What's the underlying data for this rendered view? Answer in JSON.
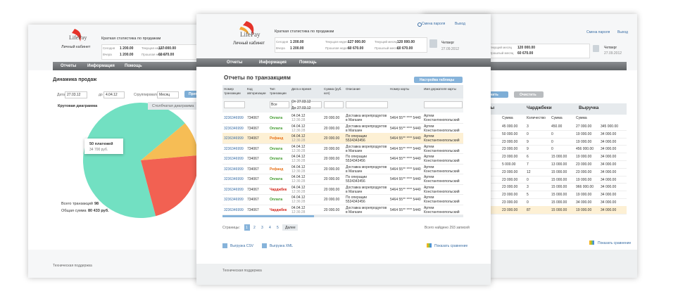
{
  "left_window": {
    "logo": "LifePay",
    "cabinet": "Личный кабинет",
    "header_title": "Краткая статистика по продажам",
    "stats": [
      {
        "label": "Сегодня",
        "value": "1 200.00"
      },
      {
        "label": "Текущая неделя",
        "value": "127 000.00"
      },
      {
        "label": "Вчера",
        "value": "1 200.00"
      },
      {
        "label": "Прошлая неделя",
        "value": "60 670.00"
      }
    ],
    "nav": [
      "Отчеты",
      "Информация",
      "Помощь"
    ],
    "title": "Динамика продаж",
    "filter": {
      "date_from_label": "Дата от",
      "date_from": "27.03.12",
      "date_to_label": "до",
      "date_to": "4.04.12",
      "group_label": "Сгруппировать по",
      "group": "Месяц",
      "apply": "Применить"
    },
    "tabs": [
      "Круговая диаграмма",
      "Столбчатая диаграмма"
    ],
    "tooltip": {
      "count": "50 платежей",
      "sum": "34 700 руб."
    },
    "totals": [
      {
        "label": "Всего транзакций",
        "value": "98"
      },
      {
        "label": "Общая сумма",
        "value": "80 433 руб."
      }
    ],
    "footer": "Техническая поддержка"
  },
  "right_window": {
    "links": [
      "Смена пароля",
      "Выход"
    ],
    "stats": [
      {
        "label": "Текущий месяц",
        "value": "120 000.00"
      },
      {
        "label": "Прошлый месяц",
        "value": "60 670.00"
      }
    ],
    "weekday": "Четверг",
    "date": "27.09.2012",
    "buttons": [
      "Применить",
      "Очистить"
    ],
    "groups": [
      "Возвраты",
      "Чарджбеки",
      "Выручка"
    ],
    "subheaders": [
      "Сумма",
      "Количество",
      "Сумма",
      "Сумма"
    ],
    "rows": [
      [
        "45 000.00",
        "3",
        "450.00",
        "27 000.00",
        "345 000.00"
      ],
      [
        "50 000.00",
        "0",
        "0",
        "19 000.00",
        "34 000.00"
      ],
      [
        "23 000.00",
        "9",
        "0",
        "19 000.00",
        "34 000.00"
      ],
      [
        "23 000.00",
        "9",
        "0",
        "456 000.00",
        "34 000.00"
      ],
      [
        "23 000.00",
        "6",
        "15 000.00",
        "19 000.00",
        "34 000.00"
      ],
      [
        "5 000.00",
        "7",
        "13 000.00",
        "23 000.00",
        "34 000.00"
      ],
      [
        "23 000.00",
        "12",
        "15 000.00",
        "23 000.00",
        "34 000.00"
      ],
      [
        "23 000.00",
        "0",
        "15 000.00",
        "19 000.00",
        "34 000.00"
      ],
      [
        "23 000.00",
        "3",
        "15 000.00",
        "966 000.00",
        "34 000.00"
      ],
      [
        "23 000.00",
        "5",
        "15 000.00",
        "19 000.00",
        "34 000.00"
      ],
      [
        "23 000.00",
        "0",
        "15 000.00",
        "34 000.00",
        "34 000.00"
      ],
      [
        "23 000.00",
        "87",
        "15 000.00",
        "19 000.00",
        "34 000.00"
      ]
    ],
    "compare": "Показать сравнение"
  },
  "center_window": {
    "logo": "LifePay",
    "cabinet": "Личный кабинет",
    "header_title": "Краткая статистика по продажам",
    "stats": [
      {
        "label": "Сегодня",
        "value": "1 200.00"
      },
      {
        "label": "Текущая неделя",
        "value": "127 000.00"
      },
      {
        "label": "Текущий месяц",
        "value": "120 000.00"
      },
      {
        "label": "Вчера",
        "value": "1 200.00"
      },
      {
        "label": "Прошлая неделя",
        "value": "60 670.00"
      },
      {
        "label": "Прошлый месяц",
        "value": "60 670.00"
      }
    ],
    "links": [
      "Смена пароля",
      "Выход"
    ],
    "weekday": "Четверг",
    "date": "27.09.2012",
    "nav": [
      "Отчеты",
      "Информация",
      "Помощь"
    ],
    "title": "Отчеты по транзакциям",
    "settings_button": "Настройка таблицы",
    "table": {
      "columns": [
        "Номер транзакции",
        "Код авторизации",
        "Тип транзакции",
        "Дата и время",
        "Сумма (руб. коп)",
        "Описание",
        "Номер карты",
        "Имя держателя карты"
      ],
      "filter": {
        "type": "Все",
        "from_label": "От",
        "from": "27.03.12",
        "to_label": "До",
        "to": "27.03.12"
      },
      "type_colors": {
        "Оплата": "#3f9a2c",
        "Рефанд": "#e8731b",
        "Чарджбек": "#d4261b"
      },
      "highlight_row": 2,
      "rows": [
        [
          "3236346999",
          "734067",
          "Оплата",
          "04.04.12",
          "12:36:28",
          "20 000.00",
          "Доставка морепродуктов в Магазин",
          "5464 55** **** 5440",
          "Артем Константинопольский"
        ],
        [
          "3236346999",
          "734067",
          "Оплата",
          "04.04.12",
          "12:36:28",
          "20 000.00",
          "Доставка морепродуктов в Магазин",
          "5464 55** **** 5440",
          "Артем Константинопольский"
        ],
        [
          "3236346999",
          "734067",
          "Рефанд",
          "04.04.12",
          "12:36:28",
          "20 000.00",
          "По операции 5534343456",
          "5464 55** **** 5440",
          "Артем Константинопольский"
        ],
        [
          "3236346999",
          "734067",
          "Оплата",
          "04.04.12",
          "12:36:28",
          "20 000.00",
          "Доставка морепродуктов в Магазин",
          "5464 55** **** 5440",
          "Артем Константинопольский"
        ],
        [
          "3236346999",
          "734067",
          "Оплата",
          "04.04.12",
          "12:36:28",
          "20 000.00",
          "По операции 5534343456",
          "5464 55** **** 5440",
          "Артем Константинопольский"
        ],
        [
          "3236346999",
          "734067",
          "Рефанд",
          "04.04.12",
          "12:36:28",
          "20 000.00",
          "Доставка морепродуктов в Магазин",
          "5464 55** **** 5440",
          "Артем Константинопольский"
        ],
        [
          "3236346999",
          "734067",
          "Оплата",
          "04.04.12",
          "12:36:28",
          "20 000.00",
          "По операции 5534343456",
          "5464 55** **** 5440",
          "Артем Константинопольский"
        ],
        [
          "3236346999",
          "734067",
          "Чарджбек",
          "04.04.12",
          "12:36:28",
          "20 000.00",
          "Доставка морепродуктов в Магазин",
          "5464 55** **** 5440",
          "Артем Константинопольский"
        ],
        [
          "3236346999",
          "734067",
          "Оплата",
          "04.04.12",
          "12:36:28",
          "20 000.00",
          "По операции 5534343456",
          "5464 55** **** 5440",
          "Артем Константинопольский"
        ],
        [
          "3236346999",
          "734067",
          "Чарджбек",
          "04.04.12",
          "12:36:28",
          "20 000.00",
          "Доставка морепродуктов в Магазин",
          "5464 55** **** 5440",
          "Артем Константинопольский"
        ]
      ]
    },
    "pages_label": "Страницы:",
    "pages": [
      "1",
      "2",
      "3",
      "4",
      "5"
    ],
    "next": "Далее",
    "found": "Всего найдено 293 записей",
    "exports": [
      "Выгрузка CSV",
      "Выгрузка XML"
    ],
    "compare": "Показать сравнение",
    "footer": "Техническая поддержка"
  }
}
